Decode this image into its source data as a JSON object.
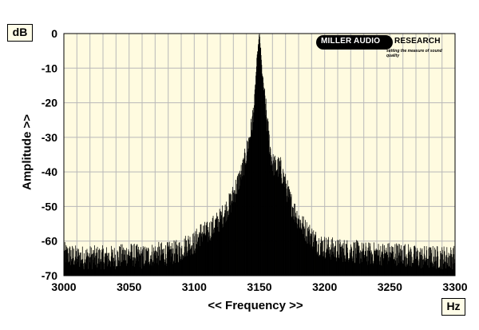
{
  "chart_data": {
    "type": "bar",
    "title": "",
    "xlabel": "<< Frequency >>",
    "ylabel": "Amplitude >>",
    "x_unit": "Hz",
    "y_unit": "dB",
    "xlim": [
      3000,
      3300
    ],
    "ylim": [
      -70,
      0
    ],
    "x_ticks": [
      "3000",
      "3050",
      "3100",
      "3150",
      "3200",
      "3250",
      "3300"
    ],
    "y_ticks": [
      "0",
      "-10",
      "-20",
      "-30",
      "-40",
      "-50",
      "-60",
      "-70"
    ],
    "grid": true,
    "series": [
      {
        "x": [
          3000,
          3010,
          3020,
          3030,
          3040,
          3050,
          3060,
          3070,
          3080,
          3090,
          3095,
          3100,
          3105,
          3110,
          3115,
          3120,
          3125,
          3128,
          3131,
          3134,
          3137,
          3140,
          3142,
          3144,
          3146,
          3147,
          3148,
          3149,
          3150,
          3151,
          3152,
          3154,
          3156,
          3158,
          3160,
          3163,
          3166,
          3170,
          3173,
          3176,
          3180,
          3185,
          3190,
          3195,
          3200,
          3210,
          3220,
          3230,
          3240,
          3250,
          3260,
          3270,
          3280,
          3290,
          3300
        ],
        "y": [
          -63,
          -64,
          -64,
          -64,
          -64,
          -63,
          -64,
          -63,
          -63,
          -62,
          -60,
          -60,
          -57,
          -57,
          -55,
          -53,
          -50,
          -48,
          -45,
          -42,
          -39,
          -34,
          -30,
          -26,
          -20,
          -14,
          -8,
          -4,
          0,
          -5,
          -11,
          -18,
          -25,
          -32,
          -37,
          -38,
          -38,
          -43,
          -47,
          -50,
          -53,
          -56,
          -58,
          -60,
          -61,
          -62,
          -62,
          -63,
          -63,
          -63,
          -63,
          -64,
          -64,
          -64,
          -64
        ]
      }
    ]
  },
  "logo": {
    "part1": "MILLER AUDIO",
    "part2": "RESEARCH",
    "tagline": "setting the measure of sound quality"
  },
  "colors": {
    "plot_background": "#fffbe0",
    "grid": "#b8b8b8",
    "bars": "#000000"
  }
}
